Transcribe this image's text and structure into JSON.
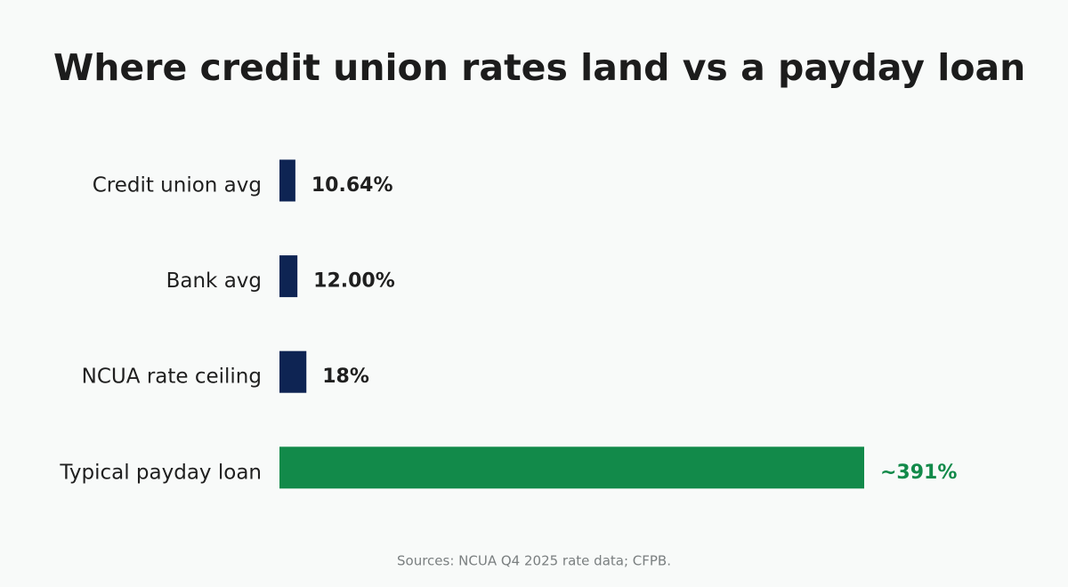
{
  "chart_data": {
    "type": "hbar",
    "title": "Where credit union rates land vs a payday loan",
    "categories": [
      "Credit union avg",
      "Bank avg",
      "NCUA rate ceiling",
      "Typical payday loan"
    ],
    "values": [
      10.64,
      12.0,
      18,
      391
    ],
    "value_labels": [
      "10.64%",
      "12.00%",
      "18%",
      "~391%"
    ],
    "colors": [
      "#0e2453",
      "#0e2453",
      "#0e2453",
      "#128a4a"
    ],
    "label_colors": [
      "#1f1f1f",
      "#1f1f1f",
      "#1f1f1f",
      "#128a4a"
    ],
    "source": "Sources: NCUA Q4 2025 rate data; CFPB."
  }
}
